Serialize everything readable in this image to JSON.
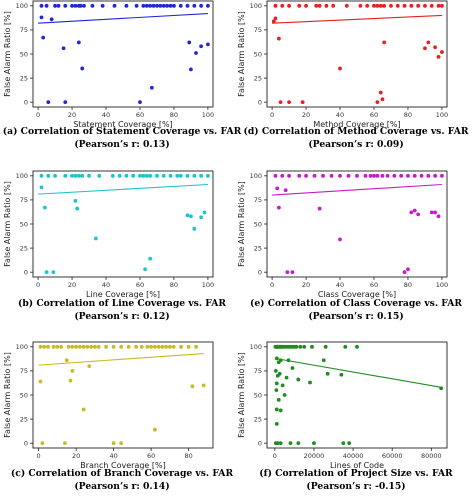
{
  "chart_data": [
    {
      "type": "scatter",
      "id": "a",
      "caption": [
        "(a) Correlation of Statement Coverage vs. FAR",
        "(Pearson’s r: 0.13)"
      ],
      "xlabel": "Statement Coverage [%]",
      "ylabel": "False Alarm Ratio [%]",
      "xlim": [
        -3,
        103
      ],
      "ylim": [
        -5,
        105
      ],
      "xticks": [
        0,
        20,
        40,
        60,
        80,
        100
      ],
      "yticks": [
        0,
        25,
        50,
        75,
        100
      ],
      "color": "#1f28d6",
      "points": [
        [
          2,
          100
        ],
        [
          5,
          100
        ],
        [
          10,
          100
        ],
        [
          12,
          100
        ],
        [
          16,
          100
        ],
        [
          20,
          100
        ],
        [
          22,
          100
        ],
        [
          24,
          100
        ],
        [
          25,
          100
        ],
        [
          27,
          100
        ],
        [
          32,
          100
        ],
        [
          38,
          100
        ],
        [
          45,
          100
        ],
        [
          52,
          100
        ],
        [
          58,
          100
        ],
        [
          62,
          100
        ],
        [
          64,
          100
        ],
        [
          66,
          100
        ],
        [
          68,
          100
        ],
        [
          70,
          100
        ],
        [
          72,
          100
        ],
        [
          74,
          100
        ],
        [
          76,
          100
        ],
        [
          78,
          100
        ],
        [
          80,
          100
        ],
        [
          84,
          100
        ],
        [
          88,
          100
        ],
        [
          92,
          100
        ],
        [
          96,
          100
        ],
        [
          100,
          100
        ],
        [
          2,
          88
        ],
        [
          8,
          86
        ],
        [
          3,
          67
        ],
        [
          15,
          56
        ],
        [
          6,
          0
        ],
        [
          16,
          0
        ],
        [
          24,
          62
        ],
        [
          26,
          35
        ],
        [
          67,
          15
        ],
        [
          60,
          0
        ],
        [
          89,
          62
        ],
        [
          90,
          34
        ],
        [
          93,
          51
        ],
        [
          96,
          58
        ],
        [
          100,
          60
        ]
      ],
      "fit": [
        [
          0,
          82
        ],
        [
          100,
          92
        ]
      ]
    },
    {
      "type": "scatter",
      "id": "d",
      "caption": [
        "(d) Correlation of Method Coverage vs. FAR",
        "(Pearson’s r: 0.09)"
      ],
      "xlabel": "Method Coverage [%]",
      "ylabel": "False Alarm Ratio [%]",
      "xlim": [
        -3,
        103
      ],
      "ylim": [
        -5,
        105
      ],
      "xticks": [
        0,
        20,
        40,
        60,
        80,
        100
      ],
      "yticks": [
        0,
        25,
        50,
        75,
        100
      ],
      "color": "#e82020",
      "points": [
        [
          2,
          100
        ],
        [
          6,
          100
        ],
        [
          10,
          100
        ],
        [
          16,
          100
        ],
        [
          20,
          100
        ],
        [
          26,
          100
        ],
        [
          28,
          100
        ],
        [
          32,
          100
        ],
        [
          36,
          100
        ],
        [
          44,
          100
        ],
        [
          52,
          100
        ],
        [
          56,
          100
        ],
        [
          60,
          100
        ],
        [
          62,
          100
        ],
        [
          64,
          100
        ],
        [
          66,
          100
        ],
        [
          70,
          100
        ],
        [
          74,
          100
        ],
        [
          78,
          100
        ],
        [
          82,
          100
        ],
        [
          86,
          100
        ],
        [
          90,
          100
        ],
        [
          94,
          100
        ],
        [
          98,
          100
        ],
        [
          100,
          100
        ],
        [
          2,
          87
        ],
        [
          4,
          66
        ],
        [
          1,
          84
        ],
        [
          5,
          0
        ],
        [
          10,
          0
        ],
        [
          18,
          0
        ],
        [
          40,
          35
        ],
        [
          62,
          0
        ],
        [
          65,
          3
        ],
        [
          64,
          10
        ],
        [
          66,
          62
        ],
        [
          90,
          56
        ],
        [
          96,
          57
        ],
        [
          98,
          47
        ],
        [
          100,
          52
        ],
        [
          92,
          62
        ]
      ],
      "fit": [
        [
          0,
          82
        ],
        [
          100,
          90
        ]
      ]
    },
    {
      "type": "scatter",
      "id": "b",
      "caption": [
        "(b) Correlation of Line Coverage vs. FAR",
        "(Pearson’s r: 0.12)"
      ],
      "xlabel": "Line Coverage [%]",
      "ylabel": "False Alarm Ratio [%]",
      "xlim": [
        -3,
        103
      ],
      "ylim": [
        -5,
        105
      ],
      "xticks": [
        0,
        20,
        40,
        60,
        80,
        100
      ],
      "yticks": [
        0,
        25,
        50,
        75,
        100
      ],
      "color": "#1cc4cc",
      "points": [
        [
          2,
          100
        ],
        [
          6,
          100
        ],
        [
          10,
          100
        ],
        [
          16,
          100
        ],
        [
          20,
          100
        ],
        [
          22,
          100
        ],
        [
          24,
          100
        ],
        [
          26,
          100
        ],
        [
          30,
          100
        ],
        [
          36,
          100
        ],
        [
          44,
          100
        ],
        [
          48,
          100
        ],
        [
          52,
          100
        ],
        [
          56,
          100
        ],
        [
          60,
          100
        ],
        [
          62,
          100
        ],
        [
          64,
          100
        ],
        [
          66,
          100
        ],
        [
          70,
          100
        ],
        [
          74,
          100
        ],
        [
          78,
          100
        ],
        [
          82,
          100
        ],
        [
          84,
          100
        ],
        [
          88,
          100
        ],
        [
          92,
          100
        ],
        [
          96,
          100
        ],
        [
          100,
          100
        ],
        [
          2,
          88
        ],
        [
          4,
          67
        ],
        [
          22,
          74
        ],
        [
          23,
          66
        ],
        [
          34,
          35
        ],
        [
          5,
          0
        ],
        [
          9,
          0
        ],
        [
          66,
          14
        ],
        [
          63,
          3
        ],
        [
          88,
          59
        ],
        [
          90,
          58
        ],
        [
          92,
          45
        ],
        [
          96,
          57
        ],
        [
          98,
          62
        ]
      ],
      "fit": [
        [
          0,
          81
        ],
        [
          100,
          91
        ]
      ]
    },
    {
      "type": "scatter",
      "id": "e",
      "caption": [
        "(e) Correlation of Class Coverage vs. FAR",
        "(Pearson’s r: 0.15)"
      ],
      "xlabel": "Class Coverage [%]",
      "ylabel": "False Alarm Ratio [%]",
      "xlim": [
        -3,
        103
      ],
      "ylim": [
        -5,
        105
      ],
      "xticks": [
        0,
        20,
        40,
        60,
        80,
        100
      ],
      "yticks": [
        0,
        25,
        50,
        75,
        100
      ],
      "color": "#c41cc8",
      "points": [
        [
          2,
          100
        ],
        [
          6,
          100
        ],
        [
          10,
          100
        ],
        [
          16,
          100
        ],
        [
          20,
          100
        ],
        [
          25,
          100
        ],
        [
          30,
          100
        ],
        [
          35,
          100
        ],
        [
          40,
          100
        ],
        [
          45,
          100
        ],
        [
          50,
          100
        ],
        [
          55,
          100
        ],
        [
          58,
          100
        ],
        [
          60,
          100
        ],
        [
          62,
          100
        ],
        [
          65,
          100
        ],
        [
          68,
          100
        ],
        [
          72,
          100
        ],
        [
          76,
          100
        ],
        [
          80,
          100
        ],
        [
          84,
          100
        ],
        [
          88,
          100
        ],
        [
          92,
          100
        ],
        [
          96,
          100
        ],
        [
          100,
          100
        ],
        [
          3,
          87
        ],
        [
          8,
          85
        ],
        [
          4,
          67
        ],
        [
          28,
          66
        ],
        [
          40,
          34
        ],
        [
          9,
          0
        ],
        [
          12,
          0
        ],
        [
          78,
          0
        ],
        [
          80,
          3
        ],
        [
          82,
          62
        ],
        [
          84,
          64
        ],
        [
          86,
          60
        ],
        [
          94,
          62
        ],
        [
          96,
          62
        ],
        [
          98,
          58
        ]
      ],
      "fit": [
        [
          0,
          80
        ],
        [
          100,
          91
        ]
      ]
    },
    {
      "type": "scatter",
      "id": "c",
      "caption": [
        "(c) Correlation of Branch Coverage vs. FAR",
        "(Pearson’s r: 0.14)"
      ],
      "xlabel": "Branch Coverage [%]",
      "ylabel": "False Alarm Ratio [%]",
      "xlim": [
        -3,
        93
      ],
      "ylim": [
        -5,
        105
      ],
      "xticks": [
        0,
        20,
        40,
        60,
        80
      ],
      "yticks": [
        0,
        25,
        50,
        75,
        100
      ],
      "color": "#c9bb22",
      "points": [
        [
          1,
          100
        ],
        [
          3,
          100
        ],
        [
          5,
          100
        ],
        [
          8,
          100
        ],
        [
          10,
          100
        ],
        [
          12,
          100
        ],
        [
          16,
          100
        ],
        [
          18,
          100
        ],
        [
          20,
          100
        ],
        [
          22,
          100
        ],
        [
          24,
          100
        ],
        [
          26,
          100
        ],
        [
          28,
          100
        ],
        [
          30,
          100
        ],
        [
          32,
          100
        ],
        [
          36,
          100
        ],
        [
          40,
          100
        ],
        [
          44,
          100
        ],
        [
          48,
          100
        ],
        [
          52,
          100
        ],
        [
          55,
          100
        ],
        [
          58,
          100
        ],
        [
          60,
          100
        ],
        [
          62,
          100
        ],
        [
          64,
          100
        ],
        [
          66,
          100
        ],
        [
          68,
          100
        ],
        [
          70,
          100
        ],
        [
          72,
          100
        ],
        [
          76,
          100
        ],
        [
          80,
          100
        ],
        [
          84,
          100
        ],
        [
          1,
          64
        ],
        [
          15,
          86
        ],
        [
          17,
          65
        ],
        [
          18,
          75
        ],
        [
          24,
          35
        ],
        [
          27,
          80
        ],
        [
          44,
          0
        ],
        [
          40,
          0
        ],
        [
          62,
          14
        ],
        [
          82,
          59
        ],
        [
          88,
          60
        ],
        [
          2,
          0
        ],
        [
          14,
          0
        ]
      ],
      "fit": [
        [
          0,
          81
        ],
        [
          88,
          93
        ]
      ]
    },
    {
      "type": "scatter",
      "id": "f",
      "caption": [
        "(f) Correlation of Project Size vs. FAR",
        "(Pearson’s r: -0.15)"
      ],
      "xlabel": "Lines of Code",
      "ylabel": "False Alarm Ratio [%]",
      "xlim": [
        -4000,
        88000
      ],
      "ylim": [
        -5,
        105
      ],
      "xticks": [
        0,
        20000,
        40000,
        60000,
        80000
      ],
      "yticks": [
        0,
        25,
        50,
        75,
        100
      ],
      "color": "#1f8c1f",
      "points": [
        [
          300,
          100
        ],
        [
          600,
          100
        ],
        [
          900,
          100
        ],
        [
          1200,
          100
        ],
        [
          1500,
          100
        ],
        [
          2000,
          100
        ],
        [
          2500,
          100
        ],
        [
          3000,
          100
        ],
        [
          3500,
          100
        ],
        [
          4000,
          100
        ],
        [
          5000,
          100
        ],
        [
          6000,
          100
        ],
        [
          7000,
          100
        ],
        [
          8000,
          100
        ],
        [
          9000,
          100
        ],
        [
          10000,
          100
        ],
        [
          11000,
          100
        ],
        [
          13000,
          100
        ],
        [
          15000,
          100
        ],
        [
          19000,
          100
        ],
        [
          26000,
          100
        ],
        [
          36000,
          100
        ],
        [
          42000,
          100
        ],
        [
          1000,
          88
        ],
        [
          2000,
          84
        ],
        [
          3000,
          86
        ],
        [
          500,
          75
        ],
        [
          1500,
          70
        ],
        [
          2500,
          72
        ],
        [
          6000,
          68
        ],
        [
          1000,
          62
        ],
        [
          4000,
          60
        ],
        [
          800,
          55
        ],
        [
          5000,
          50
        ],
        [
          2000,
          45
        ],
        [
          1000,
          35
        ],
        [
          3000,
          34
        ],
        [
          7000,
          86
        ],
        [
          9000,
          78
        ],
        [
          12000,
          66
        ],
        [
          18000,
          63
        ],
        [
          25000,
          86
        ],
        [
          27000,
          72
        ],
        [
          34000,
          71
        ],
        [
          1000,
          20
        ],
        [
          500,
          0
        ],
        [
          1500,
          0
        ],
        [
          3000,
          0
        ],
        [
          8000,
          0
        ],
        [
          12000,
          0
        ],
        [
          20000,
          0
        ],
        [
          35000,
          0
        ],
        [
          38000,
          0
        ],
        [
          85000,
          57
        ]
      ],
      "fit": [
        [
          0,
          88
        ],
        [
          85000,
          58
        ]
      ]
    }
  ]
}
